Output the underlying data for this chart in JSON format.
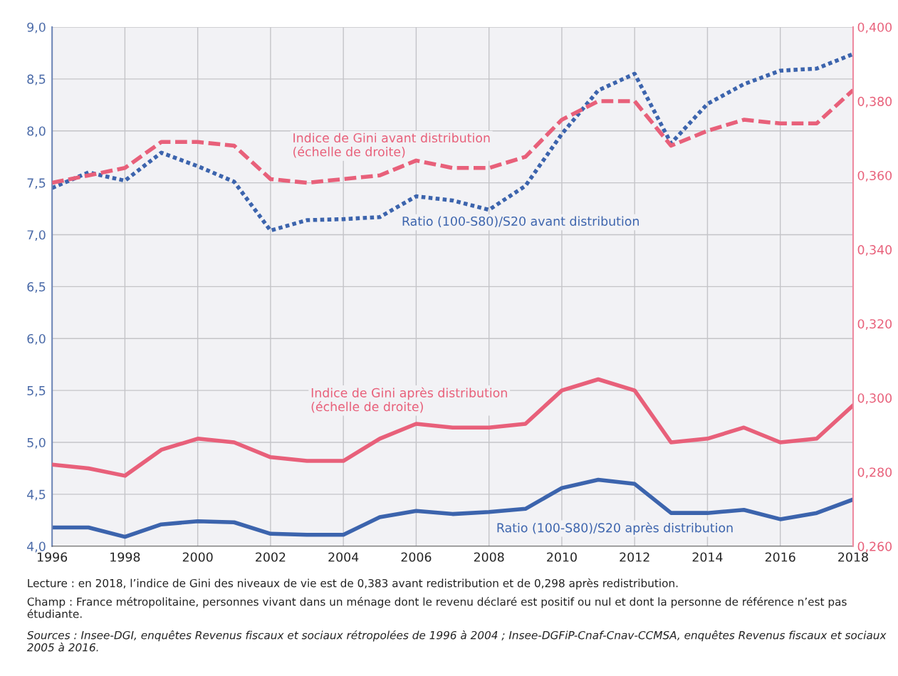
{
  "chart_data": {
    "type": "line",
    "x": [
      1996,
      1997,
      1998,
      1999,
      2000,
      2001,
      2002,
      2003,
      2004,
      2005,
      2006,
      2007,
      2008,
      2009,
      2010,
      2011,
      2012,
      2013,
      2014,
      2015,
      2016,
      2017,
      2018
    ],
    "series": [
      {
        "name": "Indice de Gini avant distribution\n(échelle de droite)",
        "color": "#e8607a",
        "axis": "y2",
        "line_style": "dashed",
        "values": [
          0.358,
          0.36,
          0.362,
          0.369,
          0.369,
          0.368,
          0.359,
          0.358,
          0.359,
          0.36,
          0.364,
          0.362,
          0.362,
          0.365,
          0.375,
          0.38,
          0.38,
          0.368,
          0.372,
          0.375,
          0.374,
          0.374,
          0.383
        ]
      },
      {
        "name": "Ratio (100-S80)/S20 avant distribution",
        "color": "#3c64ad",
        "axis": "y",
        "line_style": "dotted",
        "values": [
          7.45,
          7.6,
          7.52,
          7.79,
          7.66,
          7.51,
          7.04,
          7.14,
          7.15,
          7.17,
          7.37,
          7.33,
          7.24,
          7.47,
          7.97,
          8.39,
          8.55,
          7.88,
          8.26,
          8.45,
          8.58,
          8.6,
          8.74
        ]
      },
      {
        "name": "Indice de Gini après distribution\n(échelle de droite)",
        "color": "#e8607a",
        "axis": "y2",
        "line_style": "solid",
        "values": [
          0.282,
          0.281,
          0.279,
          0.286,
          0.289,
          0.288,
          0.284,
          0.283,
          0.283,
          0.289,
          0.293,
          0.292,
          0.292,
          0.293,
          0.302,
          0.305,
          0.302,
          0.288,
          0.289,
          0.292,
          0.288,
          0.289,
          0.298
        ]
      },
      {
        "name": "Ratio (100-S80)/S20 après distribution",
        "color": "#3c64ad",
        "axis": "y",
        "line_style": "solid",
        "values": [
          4.18,
          4.18,
          4.09,
          4.21,
          4.24,
          4.23,
          4.12,
          4.11,
          4.11,
          4.28,
          4.34,
          4.31,
          4.33,
          4.36,
          4.56,
          4.64,
          4.6,
          4.32,
          4.32,
          4.35,
          4.26,
          4.32,
          4.45
        ]
      }
    ],
    "xlim": [
      1996,
      2018
    ],
    "xticks": [
      1996,
      1998,
      2000,
      2002,
      2004,
      2006,
      2008,
      2010,
      2012,
      2014,
      2016,
      2018
    ],
    "ylim": [
      4,
      9
    ],
    "yticks": [
      {
        "value": 4,
        "label": "4,0"
      },
      {
        "value": 4.5,
        "label": "4,5"
      },
      {
        "value": 5,
        "label": "5,0"
      },
      {
        "value": 5.5,
        "label": "5,5"
      },
      {
        "value": 6,
        "label": "6,0"
      },
      {
        "value": 6.5,
        "label": "6,5"
      },
      {
        "value": 7,
        "label": "7,0"
      },
      {
        "value": 7.5,
        "label": "7,5"
      },
      {
        "value": 8,
        "label": "8,0"
      },
      {
        "value": 8.5,
        "label": "8,5"
      },
      {
        "value": 9,
        "label": "9,0"
      }
    ],
    "y2lim": [
      0.26,
      0.4
    ],
    "y2ticks": [
      {
        "value": 0.26,
        "label": "0,260"
      },
      {
        "value": 0.28,
        "label": "0,280"
      },
      {
        "value": 0.3,
        "label": "0,300"
      },
      {
        "value": 0.32,
        "label": "0,320"
      },
      {
        "value": 0.34,
        "label": "0,340"
      },
      {
        "value": 0.36,
        "label": "0,360"
      },
      {
        "value": 0.38,
        "label": "0,380"
      },
      {
        "value": 0.4,
        "label": "0,400"
      }
    ],
    "grid": true,
    "legend": false,
    "annotations": [
      "Lecture : en 2018, l’indice de Gini des niveaux de vie est de 0,383 avant redistribution et de 0,298 après redistribution.",
      "Champ : France métropolitaine, personnes vivant dans un ménage dont le revenu déclaré est positif ou nul et dont la personne de référence n’est pas étudiante.",
      "Sources : Insee-DGI, enquêtes Revenus fiscaux et sociaux rétropolées de 1996 à 2004 ; Insee-DGFiP-Cnaf-Cnav-CCMSA, enquêtes Revenus fiscaux et sociaux 2005 à 2016."
    ]
  }
}
